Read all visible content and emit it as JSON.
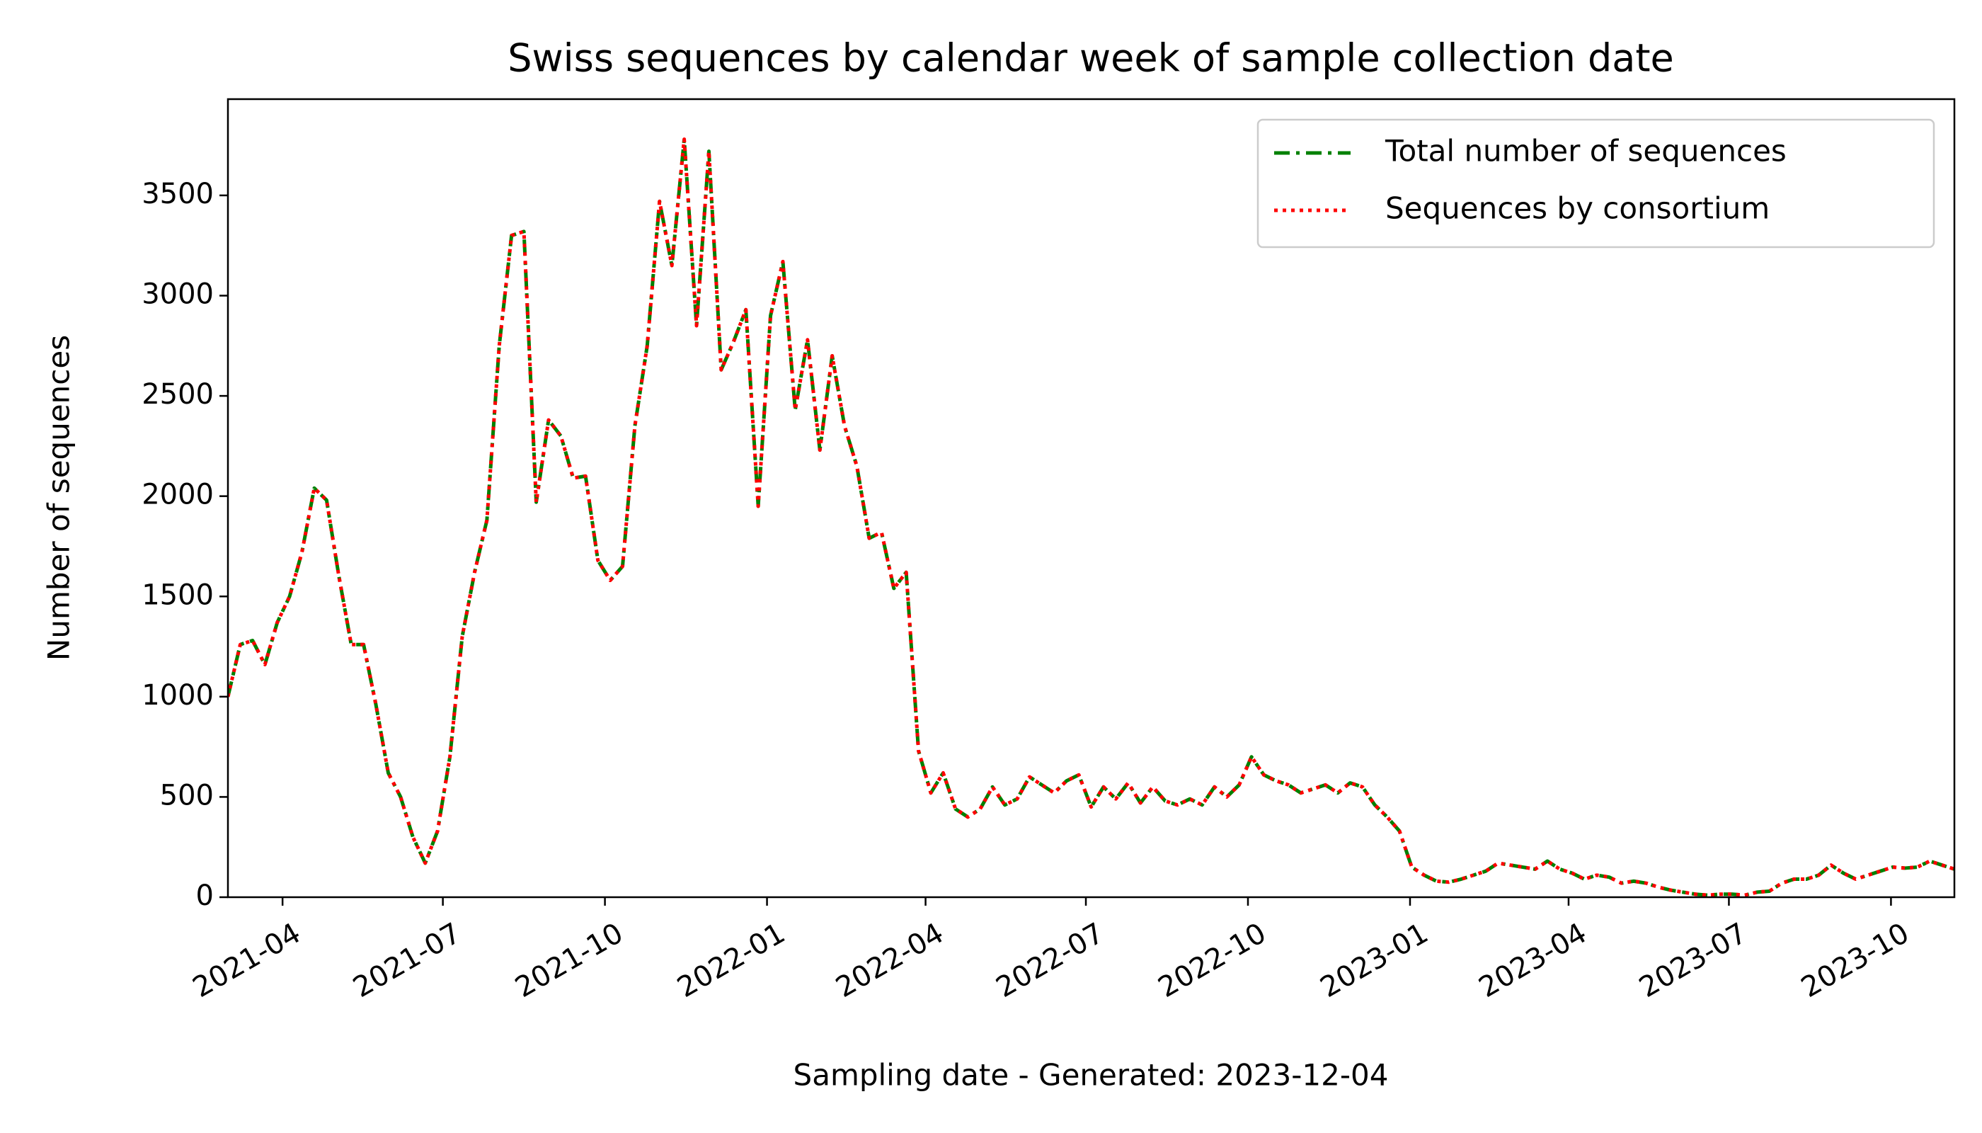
{
  "chart_data": {
    "type": "line",
    "title": "Swiss sequences by calendar week of sample collection date",
    "x_label": "Sampling date - Generated: 2023-12-04",
    "y_label": "Number of sequences",
    "x": [
      "2021-03-01",
      "2021-03-08",
      "2021-03-15",
      "2021-03-22",
      "2021-03-29",
      "2021-04-05",
      "2021-04-12",
      "2021-04-19",
      "2021-04-26",
      "2021-05-03",
      "2021-05-10",
      "2021-05-17",
      "2021-05-24",
      "2021-05-31",
      "2021-06-07",
      "2021-06-14",
      "2021-06-21",
      "2021-06-28",
      "2021-07-05",
      "2021-07-12",
      "2021-07-19",
      "2021-07-26",
      "2021-08-02",
      "2021-08-09",
      "2021-08-16",
      "2021-08-23",
      "2021-08-30",
      "2021-09-06",
      "2021-09-13",
      "2021-09-20",
      "2021-09-27",
      "2021-10-04",
      "2021-10-11",
      "2021-10-18",
      "2021-10-25",
      "2021-11-01",
      "2021-11-08",
      "2021-11-15",
      "2021-11-22",
      "2021-11-29",
      "2021-12-06",
      "2021-12-13",
      "2021-12-20",
      "2021-12-27",
      "2022-01-03",
      "2022-01-10",
      "2022-01-17",
      "2022-01-24",
      "2022-01-31",
      "2022-02-07",
      "2022-02-14",
      "2022-02-21",
      "2022-02-28",
      "2022-03-07",
      "2022-03-14",
      "2022-03-21",
      "2022-03-28",
      "2022-04-04",
      "2022-04-11",
      "2022-04-18",
      "2022-04-25",
      "2022-05-02",
      "2022-05-09",
      "2022-05-16",
      "2022-05-23",
      "2022-05-30",
      "2022-06-06",
      "2022-06-13",
      "2022-06-20",
      "2022-06-27",
      "2022-07-04",
      "2022-07-11",
      "2022-07-18",
      "2022-07-25",
      "2022-08-01",
      "2022-08-08",
      "2022-08-15",
      "2022-08-22",
      "2022-08-29",
      "2022-09-05",
      "2022-09-12",
      "2022-09-19",
      "2022-09-26",
      "2022-10-03",
      "2022-10-10",
      "2022-10-17",
      "2022-10-24",
      "2022-10-31",
      "2022-11-07",
      "2022-11-14",
      "2022-11-21",
      "2022-11-28",
      "2022-12-05",
      "2022-12-12",
      "2022-12-19",
      "2022-12-26",
      "2023-01-02",
      "2023-01-09",
      "2023-01-16",
      "2023-01-23",
      "2023-01-30",
      "2023-02-06",
      "2023-02-13",
      "2023-02-20",
      "2023-02-27",
      "2023-03-06",
      "2023-03-13",
      "2023-03-20",
      "2023-03-27",
      "2023-04-03",
      "2023-04-10",
      "2023-04-17",
      "2023-04-24",
      "2023-05-01",
      "2023-05-08",
      "2023-05-15",
      "2023-05-22",
      "2023-05-29",
      "2023-06-05",
      "2023-06-12",
      "2023-06-19",
      "2023-06-26",
      "2023-07-03",
      "2023-07-10",
      "2023-07-17",
      "2023-07-24",
      "2023-07-31",
      "2023-08-07",
      "2023-08-14",
      "2023-08-21",
      "2023-08-28",
      "2023-09-04",
      "2023-09-11",
      "2023-09-18",
      "2023-09-25",
      "2023-10-02",
      "2023-10-09",
      "2023-10-16",
      "2023-10-23",
      "2023-10-30",
      "2023-11-06"
    ],
    "series": [
      {
        "name": "Total number of sequences",
        "color": "#008000",
        "dash": "dashdot",
        "values": [
          1000,
          1260,
          1280,
          1160,
          1370,
          1500,
          1720,
          2040,
          1980,
          1600,
          1260,
          1260,
          960,
          620,
          500,
          300,
          170,
          330,
          700,
          1300,
          1620,
          1880,
          2750,
          3300,
          3320,
          1970,
          2380,
          2300,
          2090,
          2100,
          1680,
          1580,
          1650,
          2350,
          2750,
          3470,
          3150,
          3780,
          2850,
          3720,
          2630,
          2770,
          2930,
          1950,
          2900,
          3170,
          2430,
          2780,
          2230,
          2700,
          2350,
          2150,
          1790,
          1820,
          1540,
          1620,
          730,
          520,
          620,
          440,
          400,
          440,
          550,
          460,
          490,
          600,
          560,
          520,
          580,
          610,
          450,
          550,
          490,
          570,
          470,
          550,
          480,
          460,
          490,
          460,
          550,
          500,
          560,
          700,
          610,
          580,
          560,
          520,
          540,
          560,
          520,
          570,
          550,
          460,
          400,
          330,
          150,
          110,
          80,
          75,
          90,
          110,
          130,
          170,
          160,
          150,
          140,
          180,
          140,
          120,
          90,
          110,
          100,
          70,
          80,
          70,
          50,
          35,
          25,
          15,
          10,
          15,
          15,
          10,
          25,
          30,
          70,
          90,
          90,
          110,
          160,
          120,
          90,
          110,
          130,
          150,
          145,
          150,
          180,
          160,
          140
        ]
      },
      {
        "name": "Sequences by consortium",
        "color": "#ff0000",
        "dash": "dotted",
        "values": [
          1000,
          1260,
          1280,
          1160,
          1370,
          1500,
          1720,
          2040,
          1980,
          1600,
          1260,
          1260,
          960,
          620,
          500,
          300,
          170,
          330,
          700,
          1300,
          1620,
          1880,
          2750,
          3300,
          3320,
          1970,
          2380,
          2300,
          2090,
          2100,
          1680,
          1580,
          1650,
          2350,
          2750,
          3470,
          3150,
          3780,
          2850,
          3720,
          2630,
          2770,
          2930,
          1950,
          2900,
          3170,
          2430,
          2780,
          2230,
          2700,
          2350,
          2150,
          1790,
          1820,
          1540,
          1620,
          730,
          520,
          620,
          440,
          400,
          440,
          550,
          460,
          490,
          600,
          560,
          520,
          580,
          610,
          450,
          550,
          490,
          570,
          470,
          550,
          480,
          460,
          490,
          460,
          550,
          500,
          560,
          700,
          610,
          580,
          560,
          520,
          540,
          560,
          520,
          570,
          550,
          460,
          400,
          330,
          150,
          110,
          80,
          75,
          90,
          110,
          130,
          170,
          160,
          150,
          140,
          180,
          140,
          120,
          90,
          110,
          100,
          70,
          80,
          70,
          50,
          35,
          25,
          15,
          10,
          15,
          15,
          10,
          25,
          30,
          70,
          90,
          90,
          110,
          160,
          120,
          90,
          110,
          130,
          150,
          145,
          150,
          180,
          160,
          140
        ]
      }
    ],
    "xlim": [
      "2021-03-01",
      "2023-11-06"
    ],
    "xticks": [
      {
        "value": "2021-04-01",
        "label": "2021-04"
      },
      {
        "value": "2021-07-01",
        "label": "2021-07"
      },
      {
        "value": "2021-10-01",
        "label": "2021-10"
      },
      {
        "value": "2022-01-01",
        "label": "2022-01"
      },
      {
        "value": "2022-04-01",
        "label": "2022-04"
      },
      {
        "value": "2022-07-01",
        "label": "2022-07"
      },
      {
        "value": "2022-10-01",
        "label": "2022-10"
      },
      {
        "value": "2023-01-01",
        "label": "2023-01"
      },
      {
        "value": "2023-04-01",
        "label": "2023-04"
      },
      {
        "value": "2023-07-01",
        "label": "2023-07"
      },
      {
        "value": "2023-10-01",
        "label": "2023-10"
      }
    ],
    "ylim": [
      0,
      3980
    ],
    "yticks": [
      0,
      500,
      1000,
      1500,
      2000,
      2500,
      3000,
      3500
    ],
    "grid": false,
    "legend": "upper right"
  }
}
